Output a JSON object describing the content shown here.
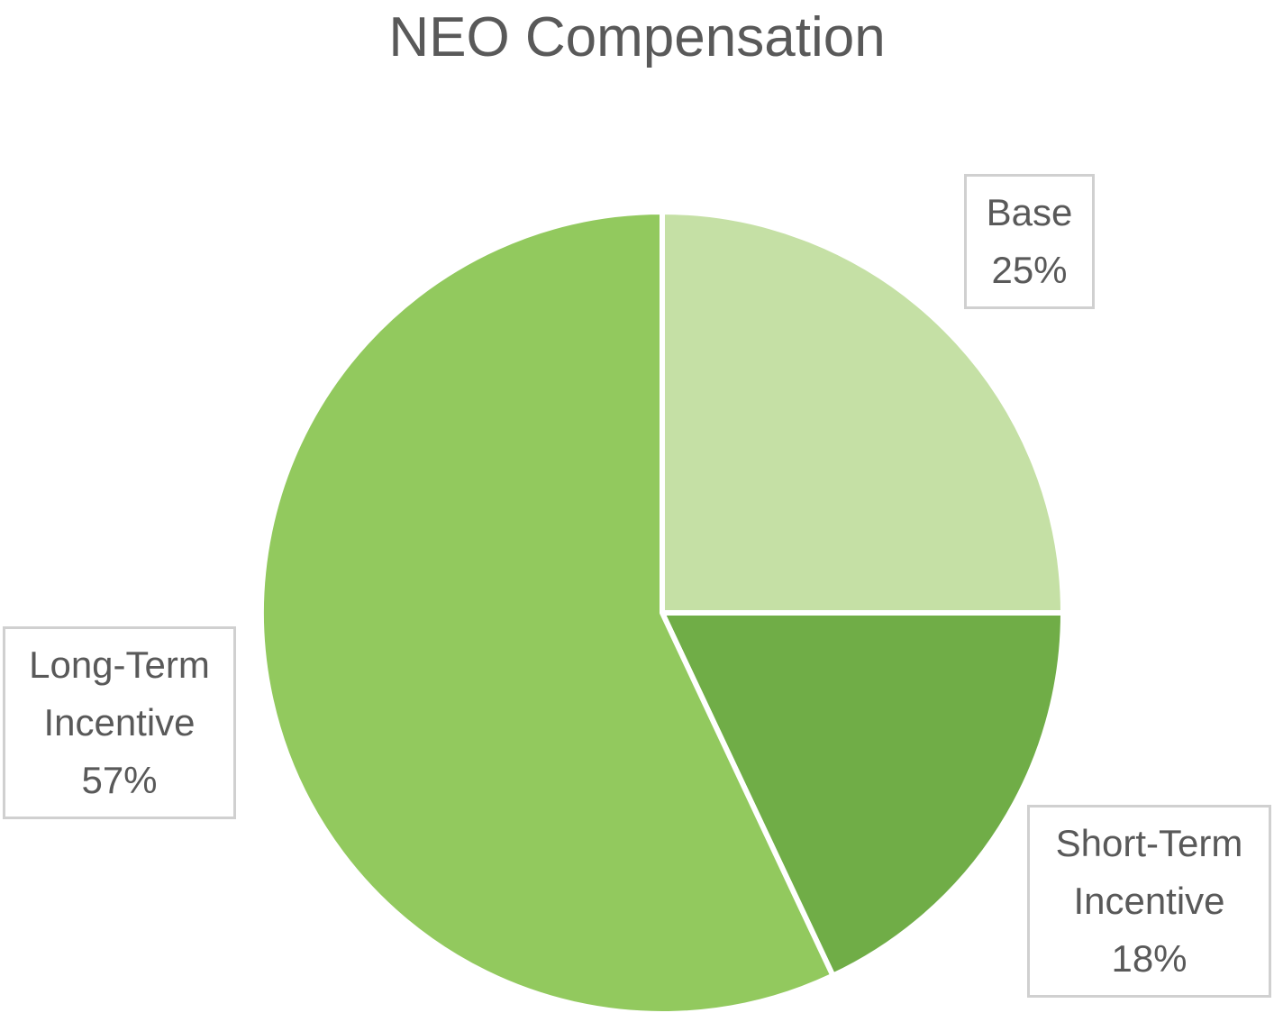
{
  "chart_data": {
    "type": "pie",
    "title": "NEO Compensation",
    "categories": [
      "Base",
      "Short-Term Incentive",
      "Long-Term Incentive"
    ],
    "values": [
      25,
      18,
      57
    ],
    "value_labels": [
      "25%",
      "18%",
      "57%"
    ],
    "colors": [
      "#c5e0a5",
      "#70ad47",
      "#92c95e"
    ]
  }
}
